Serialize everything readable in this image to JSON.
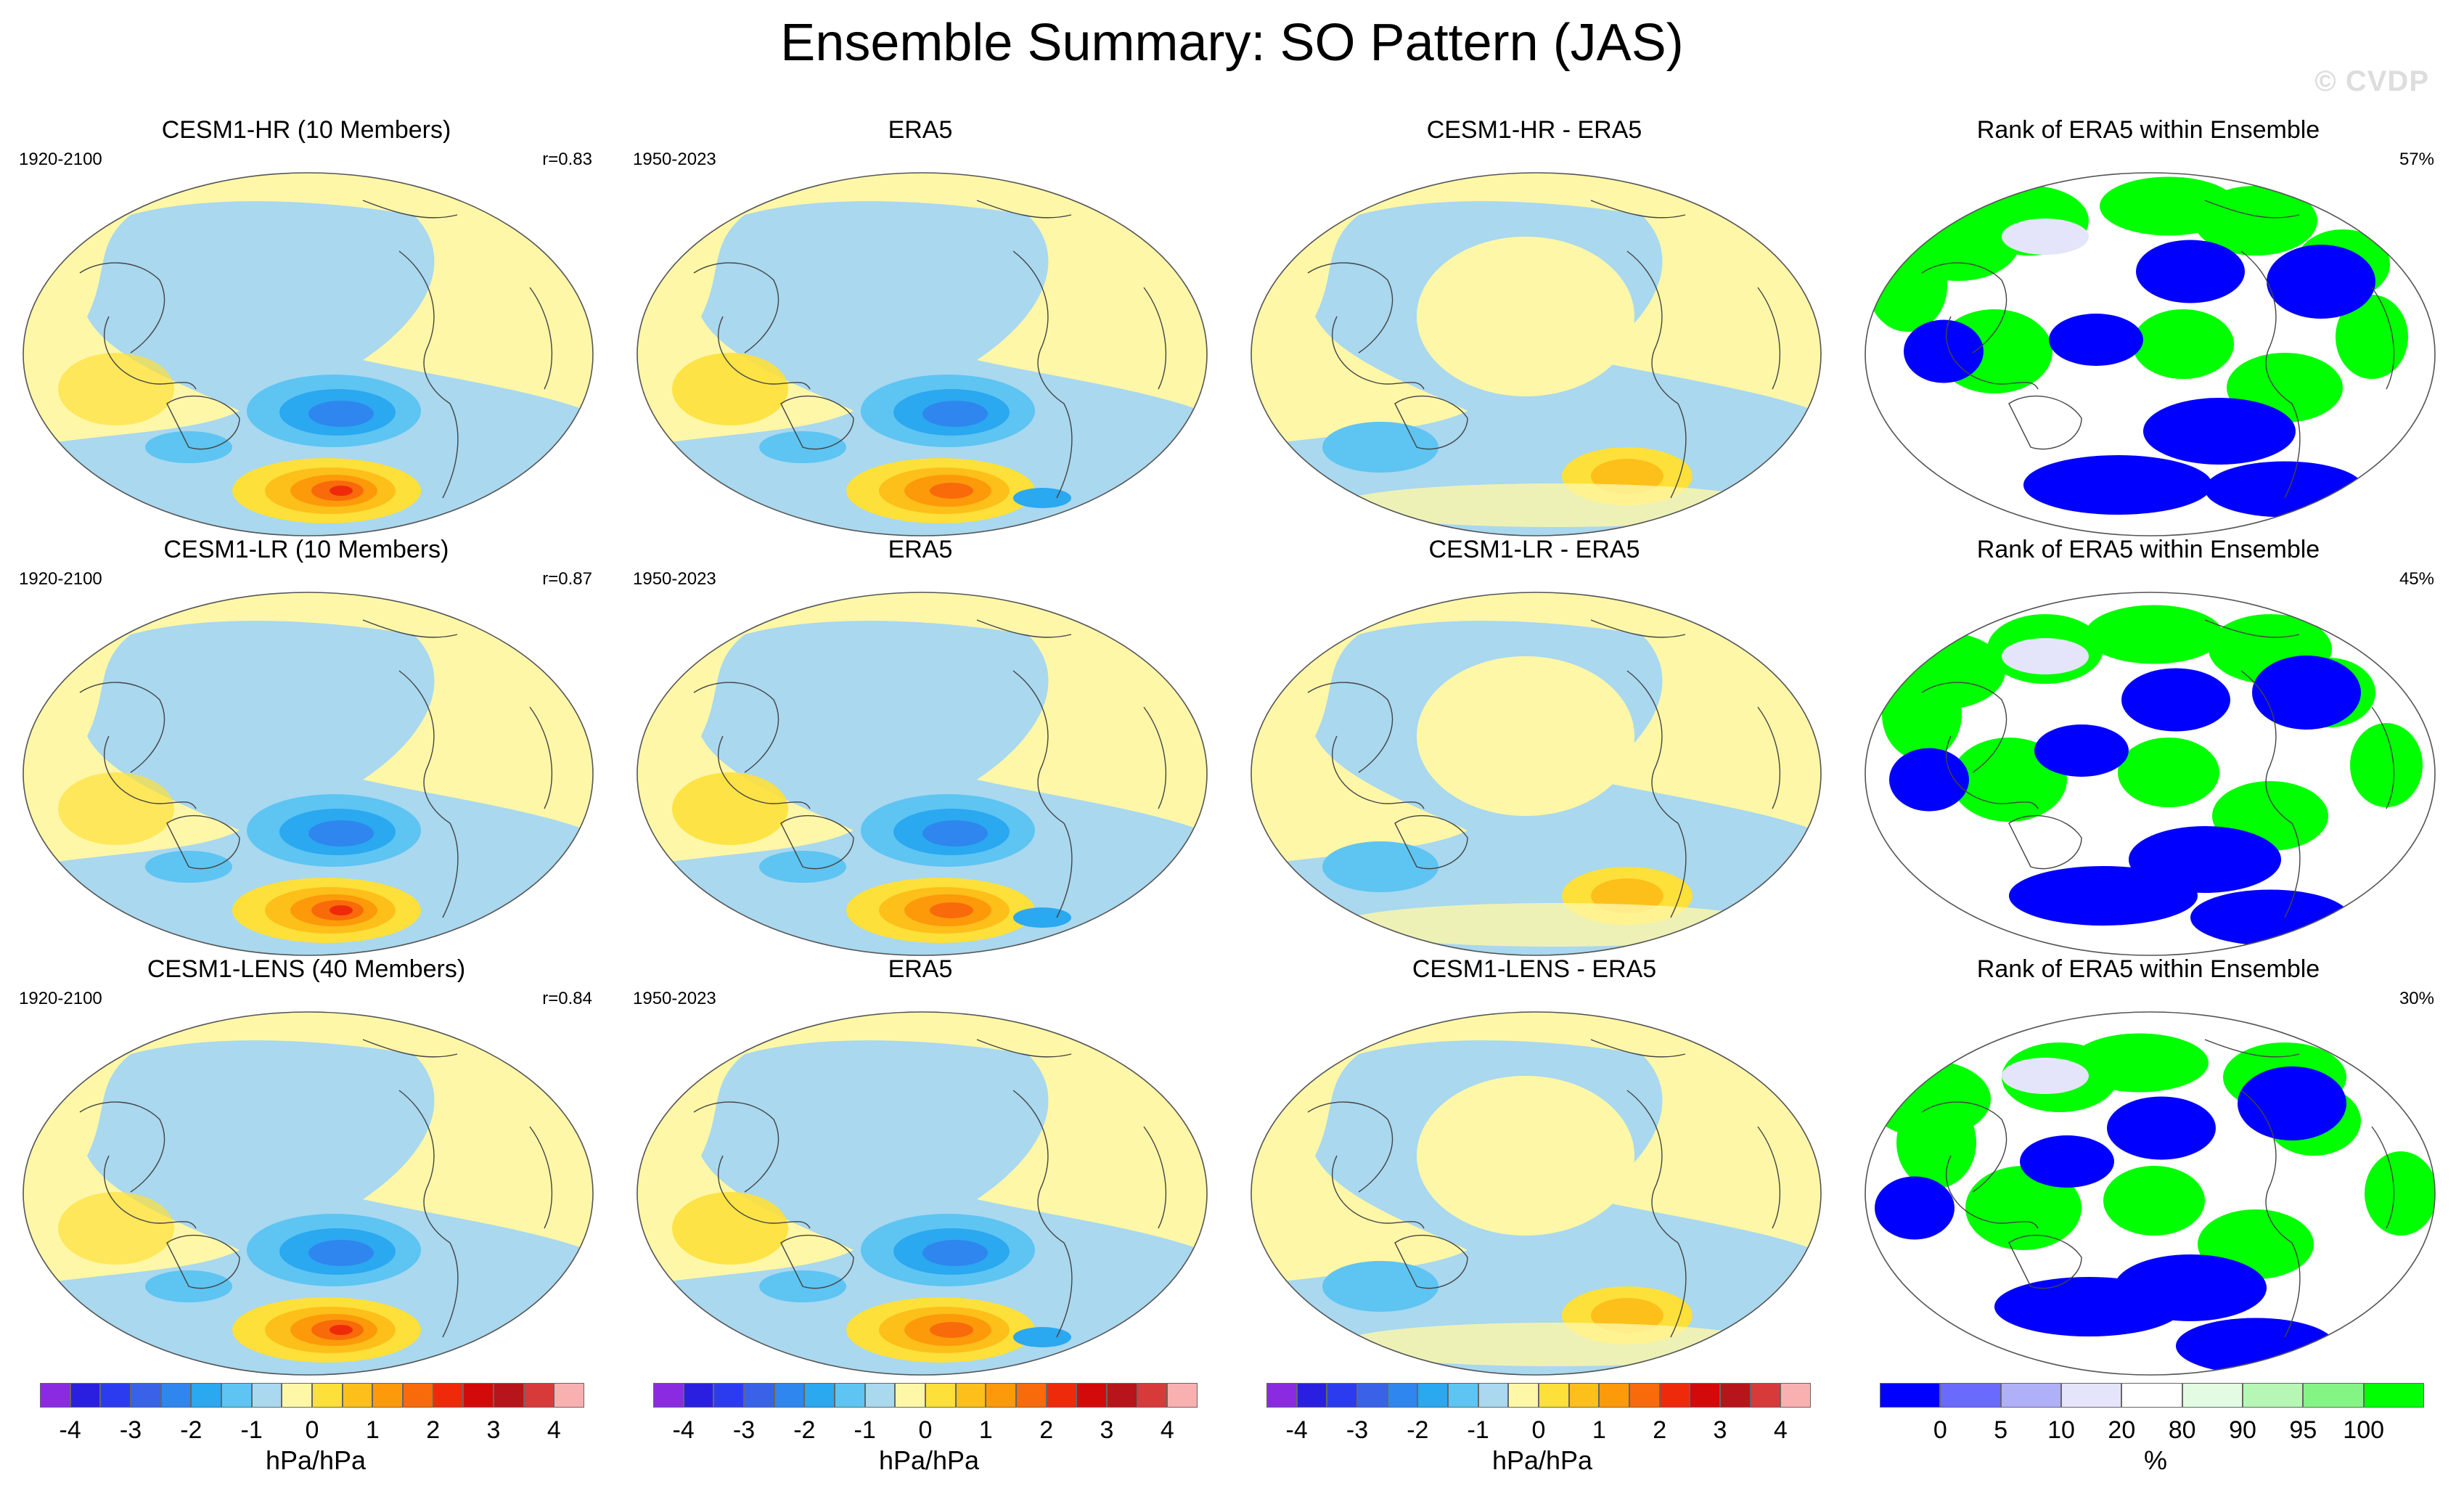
{
  "title": "Ensemble Summary: SO Pattern (JAS)",
  "watermark": "© CVDP",
  "rows": [
    {
      "model": {
        "title": "CESM1-HR (10 Members)",
        "years": "1920-2100",
        "corr": "r=0.83"
      },
      "obs": {
        "title": "ERA5",
        "years": "1950-2023"
      },
      "diff": {
        "title": "CESM1-HR - ERA5"
      },
      "rank": {
        "title": "Rank of ERA5 within Ensemble",
        "pct": "57%"
      }
    },
    {
      "model": {
        "title": "CESM1-LR (10 Members)",
        "years": "1920-2100",
        "corr": "r=0.87"
      },
      "obs": {
        "title": "ERA5",
        "years": "1950-2023"
      },
      "diff": {
        "title": "CESM1-LR - ERA5"
      },
      "rank": {
        "title": "Rank of ERA5 within Ensemble",
        "pct": "45%"
      }
    },
    {
      "model": {
        "title": "CESM1-LENS (40 Members)",
        "years": "1920-2100",
        "corr": "r=0.84"
      },
      "obs": {
        "title": "ERA5",
        "years": "1950-2023"
      },
      "diff": {
        "title": "CESM1-LENS - ERA5"
      },
      "rank": {
        "title": "Rank of ERA5 within Ensemble",
        "pct": "30%"
      }
    }
  ],
  "colorbars": {
    "pattern": {
      "label": "hPa/hPa",
      "ticks": [
        "-4",
        "-3",
        "-2",
        "-1",
        "0",
        "1",
        "2",
        "3",
        "4"
      ],
      "colors": [
        "#8a2be2",
        "#2a1fe0",
        "#2b3cf0",
        "#3a62e8",
        "#2f86ee",
        "#2aa8f0",
        "#5ec4f2",
        "#a9d8ef",
        "#fff7a8",
        "#fde03a",
        "#fdbf1a",
        "#fc9a0a",
        "#f86a0a",
        "#ef2a0a",
        "#d40a0a",
        "#b8141c",
        "#d83a3a",
        "#f8b0b0"
      ]
    },
    "rank": {
      "label": "%",
      "ticks": [
        "0",
        "5",
        "10",
        "20",
        "80",
        "90",
        "95",
        "100"
      ],
      "colors": [
        "#0000ff",
        "#6a6afd",
        "#b0b0f8",
        "#e4e4fb",
        "#ffffff",
        "#e2fbe2",
        "#b6f7b6",
        "#84f584",
        "#00ff00"
      ]
    }
  },
  "palette": {
    "yellow": "#fff7a8",
    "lightblue": "#a9d8ef",
    "blue1": "#5ec4f2",
    "blue2": "#2aa8f0",
    "blue3": "#2f86ee",
    "orange1": "#fde03a",
    "orange2": "#fdbf1a",
    "orange3": "#fc9a0a",
    "orange4": "#f86a0a",
    "orange5": "#ef2a0a",
    "rank_blue": "#0000ff",
    "rank_green": "#00ff00",
    "rank_lav": "#e4e4fb"
  }
}
